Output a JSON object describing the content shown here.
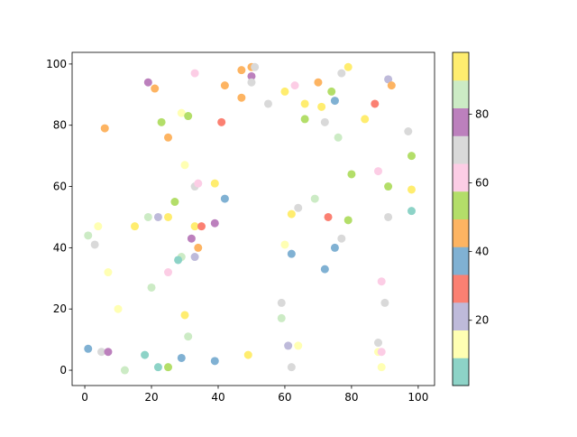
{
  "chart_data": {
    "type": "scatter",
    "x": [
      19,
      21,
      33,
      42,
      47,
      50,
      51,
      50,
      50,
      47,
      55,
      60,
      63,
      66,
      70,
      71,
      74,
      75,
      77,
      79,
      91,
      92,
      87,
      84,
      72,
      66,
      76,
      97,
      6,
      23,
      25,
      29,
      31,
      41,
      30,
      98,
      80,
      88,
      91,
      98,
      33,
      34,
      39,
      42,
      27,
      69,
      64,
      62,
      98,
      91,
      79,
      73,
      1,
      3,
      4,
      15,
      19,
      22,
      25,
      33,
      35,
      39,
      32,
      34,
      29,
      28,
      33,
      25,
      7,
      20,
      60,
      62,
      77,
      75,
      72,
      89,
      90,
      59,
      59,
      10,
      30,
      31,
      88,
      88,
      89,
      89,
      49,
      61,
      64,
      62,
      1,
      5,
      7,
      12,
      18,
      22,
      25,
      29,
      39
    ],
    "y": [
      94,
      92,
      97,
      93,
      98,
      99,
      99,
      96,
      94,
      89,
      87,
      91,
      93,
      87,
      94,
      86,
      91,
      88,
      97,
      99,
      95,
      93,
      87,
      82,
      81,
      82,
      76,
      78,
      79,
      81,
      76,
      84,
      83,
      81,
      67,
      70,
      64,
      65,
      60,
      59,
      60,
      61,
      61,
      56,
      55,
      56,
      53,
      51,
      52,
      50,
      49,
      50,
      44,
      41,
      47,
      47,
      50,
      50,
      50,
      47,
      47,
      48,
      43,
      40,
      37,
      36,
      37,
      32,
      32,
      27,
      41,
      38,
      43,
      40,
      33,
      29,
      22,
      22,
      17,
      20,
      18,
      11,
      9,
      6,
      6,
      1,
      5,
      8,
      8,
      1,
      7,
      6,
      6,
      0,
      5,
      1,
      1,
      4,
      3
    ],
    "c": [
      78,
      45,
      62,
      45,
      45,
      45,
      70,
      78,
      70,
      45,
      70,
      94,
      62,
      94,
      45,
      94,
      54,
      37,
      70,
      94,
      21,
      45,
      29,
      94,
      70,
      54,
      86,
      70,
      45,
      54,
      45,
      13,
      54,
      29,
      13,
      54,
      54,
      62,
      54,
      94,
      70,
      62,
      94,
      37,
      54,
      86,
      70,
      94,
      5,
      70,
      54,
      29,
      86,
      70,
      13,
      94,
      86,
      21,
      94,
      94,
      29,
      78,
      78,
      45,
      86,
      5,
      21,
      62,
      13,
      86,
      13,
      37,
      70,
      37,
      37,
      62,
      70,
      70,
      86,
      13,
      94,
      86,
      70,
      13,
      62,
      13,
      94,
      21,
      13,
      70,
      37,
      70,
      78,
      86,
      5,
      5,
      54,
      37,
      37
    ],
    "xlim": [
      -3.8,
      104.9
    ],
    "ylim": [
      -5,
      103.8
    ],
    "xticks": [
      0,
      20,
      40,
      60,
      80,
      100
    ],
    "yticks": [
      0,
      20,
      40,
      60,
      80,
      100
    ],
    "clim": [
      1,
      98
    ],
    "cticks": [
      20,
      40,
      60,
      80
    ],
    "colormap": [
      "#8dd3c7",
      "#ffffb3",
      "#bebada",
      "#fb8072",
      "#80b1d3",
      "#fdb462",
      "#b3de69",
      "#fccde5",
      "#d9d9d9",
      "#bc80bd",
      "#ccebc5",
      "#ffed6f"
    ]
  }
}
